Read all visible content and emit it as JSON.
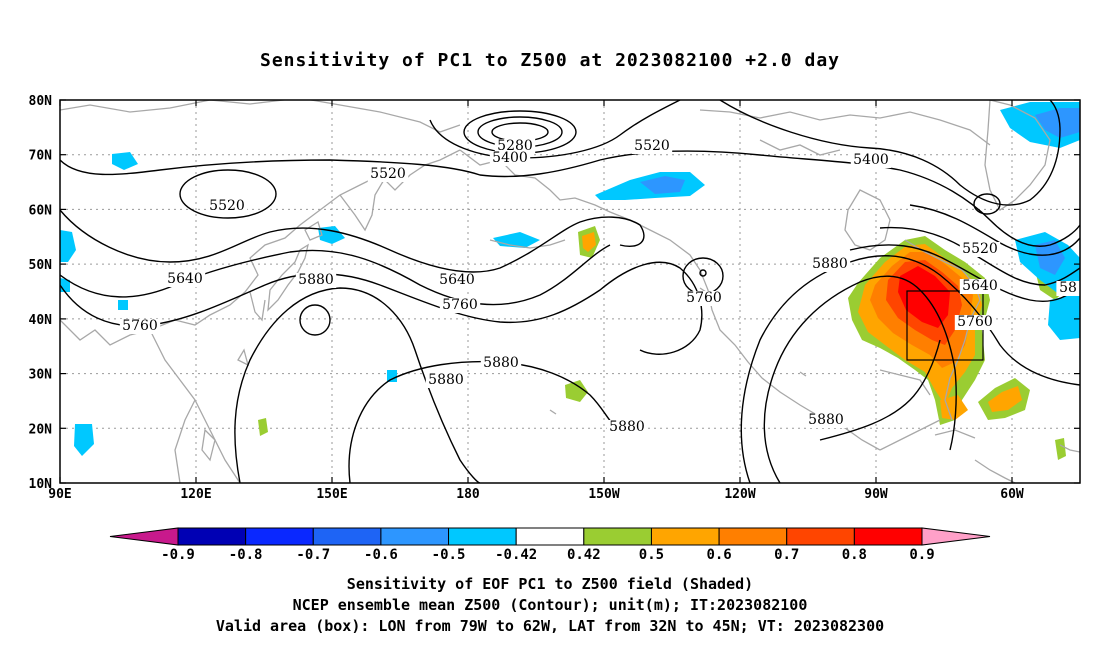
{
  "title": "Sensitivity of PC1 to Z500 at 2023082100 +2.0 day",
  "map": {
    "lat_labels": [
      "80N",
      "70N",
      "60N",
      "50N",
      "40N",
      "30N",
      "20N",
      "10N"
    ],
    "lon_labels": [
      "90E",
      "120E",
      "150E",
      "180",
      "150W",
      "120W",
      "90W",
      "60W"
    ],
    "contour_labels": [
      "5280",
      "5400",
      "5520",
      "5520",
      "5520",
      "5640",
      "5640",
      "5760",
      "5760",
      "5880",
      "5880",
      "5880",
      "5880",
      "5880",
      "5880",
      "5400",
      "5520",
      "5640",
      "5760",
      "5760",
      "58"
    ],
    "valid_box": {
      "lon_min": -79,
      "lon_max": -62,
      "lat_min": 32,
      "lat_max": 45
    },
    "colors": {
      "coast": "#a8a8a8",
      "contour": "#000000",
      "grid": "#9a9a9a"
    }
  },
  "colorbar": {
    "labels": [
      "-0.9",
      "-0.8",
      "-0.7",
      "-0.6",
      "-0.5",
      "-0.42",
      "0.42",
      "0.5",
      "0.6",
      "0.7",
      "0.8",
      "0.9"
    ],
    "colors": [
      "#c8198c",
      "#0000b4",
      "#0a28ff",
      "#1e64f5",
      "#2d96ff",
      "#00c8ff",
      "#ffffff",
      "#9acd32",
      "#ffa500",
      "#ff7f00",
      "#ff4500",
      "#ff0000",
      "#ffa0c8"
    ]
  },
  "caption": {
    "line1": "Sensitivity of EOF PC1 to Z500 field (Shaded)",
    "line2": "NCEP ensemble mean Z500 (Contour); unit(m); IT:2023082100",
    "line3": "Valid area (box): LON from 79W to 62W, LAT from 32N to 45N; VT: 2023082300"
  }
}
